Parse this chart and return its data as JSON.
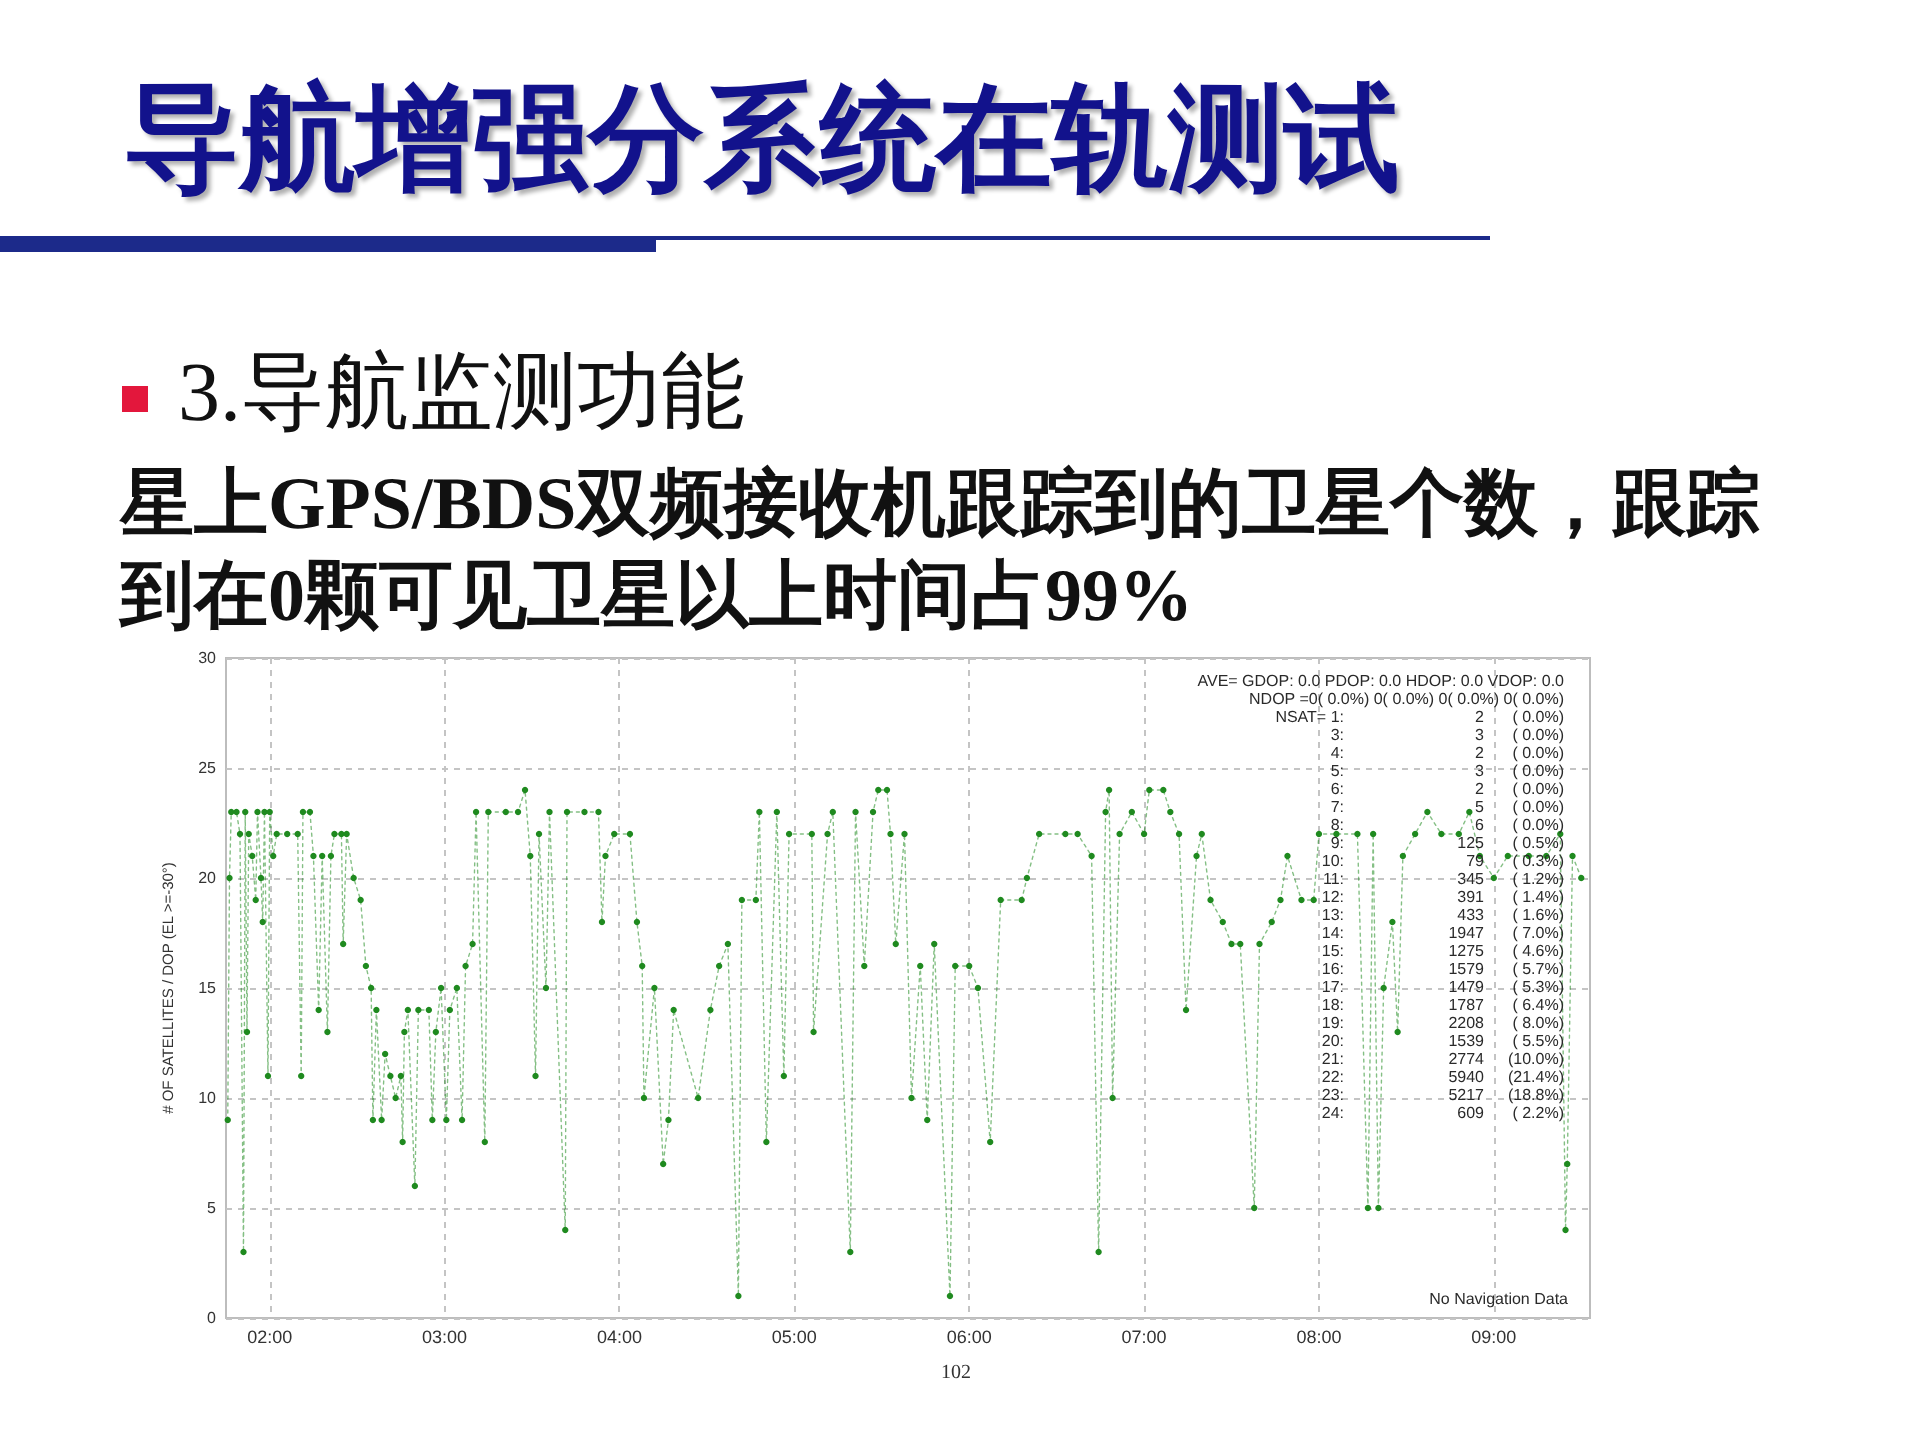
{
  "chart_data": {
    "type": "line",
    "title": "导航增强分系统在轨测试",
    "subtitle": "3.导航监测功能",
    "ylabel": "# OF SATELLITES / DOP (EL >=-30°)",
    "annotations": [
      "星上GPS/BDS双频接收机跟踪到的卫星个数，跟踪到在0颗可见卫星以上时间占99%",
      "AVE= GDOP: 0.0 PDOP: 0.0 HDOP: 0.0 VDOP: 0.0",
      "NDOP =0( 0.0%) 0( 0.0%) 0( 0.0%) 0( 0.0%)",
      "NSAT= 1: 2 ( 0.0%)",
      "3: 3 ( 0.0%)",
      "4: 2 ( 0.0%)",
      "5: 3 ( 0.0%)",
      "6: 2 ( 0.0%)",
      "7: 5 ( 0.0%)",
      "8: 6 ( 0.0%)",
      "9: 125 ( 0.5%)",
      "10: 79 ( 0.3%)",
      "11: 345 ( 1.2%)",
      "12: 391 ( 1.4%)",
      "13: 433 ( 1.6%)",
      "14: 1947 ( 7.0%)",
      "15: 1275 ( 4.6%)",
      "16: 1579 ( 5.7%)",
      "17: 1479 ( 5.3%)",
      "18: 1787 ( 6.4%)",
      "19: 2208 ( 8.0%)",
      "20: 1539 ( 5.5%)",
      "21: 2774 (10.0%)",
      "22: 5940 (21.4%)",
      "23: 5217 (18.8%)",
      "24: 609 ( 2.2%)",
      "No Navigation Data",
      "102"
    ],
    "x": [
      1.76,
      1.77,
      1.78,
      1.81,
      1.83,
      1.85,
      1.86,
      1.87,
      1.88,
      1.9,
      1.92,
      1.93,
      1.95,
      1.96,
      1.97,
      1.99,
      2.0,
      2.02,
      2.04,
      2.1,
      2.16,
      2.18,
      2.19,
      2.23,
      2.25,
      2.28,
      2.3,
      2.33,
      2.35,
      2.37,
      2.41,
      2.42,
      2.44,
      2.48,
      2.52,
      2.55,
      2.58,
      2.59,
      2.61,
      2.64,
      2.66,
      2.69,
      2.72,
      2.75,
      2.76,
      2.77,
      2.79,
      2.83,
      2.85,
      2.91,
      2.93,
      2.95,
      2.98,
      3.01,
      3.03,
      3.07,
      3.1,
      3.12,
      3.16,
      3.18,
      3.23,
      3.25,
      3.35,
      3.42,
      3.46,
      3.49,
      3.52,
      3.54,
      3.58,
      3.6,
      3.69,
      3.7,
      3.8,
      3.88,
      3.9,
      3.92,
      3.97,
      4.06,
      4.1,
      4.13,
      4.14,
      4.2,
      4.25,
      4.28,
      4.31,
      4.45,
      4.52,
      4.57,
      4.62,
      4.68,
      4.7,
      4.78,
      4.8,
      4.84,
      4.9,
      4.94,
      4.97,
      5.1,
      5.11,
      5.19,
      5.22,
      5.32,
      5.35,
      5.4,
      5.45,
      5.48,
      5.53,
      5.55,
      5.58,
      5.63,
      5.67,
      5.72,
      5.76,
      5.8,
      5.89,
      5.92,
      6.0,
      6.05,
      6.12,
      6.18,
      6.3,
      6.33,
      6.4,
      6.55,
      6.62,
      6.7,
      6.74,
      6.78,
      6.8,
      6.82,
      6.86,
      6.93,
      7.0,
      7.03,
      7.11,
      7.15,
      7.2,
      7.24,
      7.3,
      7.33,
      7.38,
      7.45,
      7.5,
      7.55,
      7.63,
      7.66,
      7.73,
      7.78,
      7.82,
      7.9,
      7.97,
      8.0,
      8.1,
      8.22,
      8.28,
      8.31,
      8.34,
      8.37,
      8.42,
      8.45,
      8.48,
      8.55,
      8.62,
      8.7,
      8.8,
      8.86,
      8.92,
      9.0,
      9.08,
      9.2,
      9.3,
      9.38,
      9.41,
      9.42,
      9.45,
      9.5
    ],
    "values": [
      9,
      20,
      23,
      23,
      22,
      3,
      23,
      13,
      22,
      21,
      19,
      23,
      20,
      18,
      23,
      11,
      23,
      21,
      22,
      22,
      22,
      11,
      23,
      23,
      21,
      14,
      21,
      13,
      21,
      22,
      22,
      17,
      22,
      20,
      19,
      16,
      15,
      9,
      14,
      9,
      12,
      11,
      10,
      11,
      8,
      13,
      14,
      6,
      14,
      14,
      9,
      13,
      15,
      9,
      14,
      15,
      9,
      16,
      17,
      23,
      8,
      23,
      23,
      23,
      24,
      21,
      11,
      22,
      15,
      23,
      4,
      23,
      23,
      23,
      18,
      21,
      22,
      22,
      18,
      16,
      10,
      15,
      7,
      9,
      14,
      10,
      14,
      16,
      17,
      1,
      19,
      19,
      23,
      8,
      23,
      11,
      22,
      22,
      13,
      22,
      23,
      3,
      23,
      16,
      23,
      24,
      24,
      22,
      17,
      22,
      10,
      16,
      9,
      17,
      1,
      16,
      16,
      15,
      8,
      19,
      19,
      20,
      22,
      22,
      22,
      21,
      3,
      23,
      24,
      10,
      22,
      23,
      22,
      24,
      24,
      23,
      22,
      14,
      21,
      22,
      19,
      18,
      17,
      17,
      5,
      17,
      18,
      19,
      21,
      19,
      19,
      22,
      22,
      22,
      5,
      22,
      5,
      15,
      18,
      13,
      21,
      22,
      23,
      22,
      22,
      23,
      21,
      20,
      21,
      21,
      21,
      22,
      4,
      7,
      21,
      20
    ],
    "color": "#1f8a1f",
    "xlim": [
      1.75,
      9.55
    ],
    "xticks": [
      {
        "value": 2,
        "label": "02:00"
      },
      {
        "value": 3,
        "label": "03:00"
      },
      {
        "value": 4,
        "label": "04:00"
      },
      {
        "value": 5,
        "label": "05:00"
      },
      {
        "value": 6,
        "label": "06:00"
      },
      {
        "value": 7,
        "label": "07:00"
      },
      {
        "value": 8,
        "label": "08:00"
      },
      {
        "value": 9,
        "label": "09:00"
      }
    ],
    "ylim": [
      0,
      30
    ],
    "yticks": [
      0,
      5,
      10,
      15,
      20,
      25,
      30
    ],
    "grid": true,
    "marker": "circle",
    "line_style": "dotted"
  }
}
